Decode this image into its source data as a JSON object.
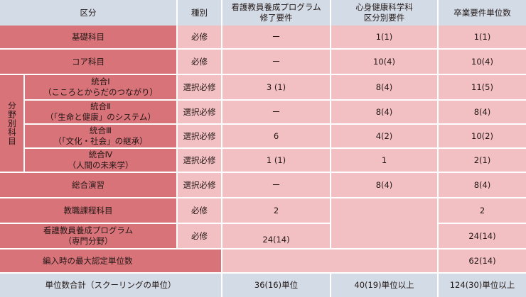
{
  "header": {
    "category": "区分",
    "type": "種別",
    "program_req": "看護教員養成プログラム\n修了要件",
    "dept_req": "心身健康科学科\n区分別要件",
    "grad_req": "卒業要件単位数"
  },
  "side_label": "分野別科目",
  "rows": [
    {
      "name": "基礎科目",
      "type": "必修",
      "program": "ー",
      "dept": "1(1)",
      "grad": "1(1)"
    },
    {
      "name": "コア科目",
      "type": "必修",
      "program": "ー",
      "dept": "10(4)",
      "grad": "10(4)"
    },
    {
      "name": "統合Ⅰ\n（こころとからだのつながり）",
      "type": "選択必修",
      "program": "3 (1)",
      "dept": "8(4)",
      "grad": "11(5)"
    },
    {
      "name": "統合Ⅱ\n（「生命と健康」のシステム）",
      "type": "選択必修",
      "program": "ー",
      "dept": "8(4)",
      "grad": "8(4)"
    },
    {
      "name": "統合Ⅲ\n（「文化・社会」の継承）",
      "type": "選択必修",
      "program": "6",
      "dept": "4(2)",
      "grad": "10(2)"
    },
    {
      "name": "統合Ⅳ\n（人間の未来学）",
      "type": "選択必修",
      "program": "1 (1)",
      "dept": "1",
      "grad": "2(1)"
    },
    {
      "name": "総合演習",
      "type": "選択必修",
      "program": "ー",
      "dept": "8(4)",
      "grad": "8(4)"
    },
    {
      "name": "教職課程科目",
      "type": "必修",
      "program": "2",
      "dept": "",
      "grad": "2"
    },
    {
      "name": "看護教員養成プログラム\n（専門分野）",
      "type": "必修",
      "program": "24(14)",
      "dept": "",
      "grad": "24(14)"
    }
  ],
  "transfer": {
    "label": "編入時の最大認定単位数",
    "grad": "62(14)"
  },
  "total": {
    "label": "単位数合計（スクーリングの単位）",
    "program": "36(16)単位",
    "dept": "40(19)単位以上",
    "grad": "124(30)単位以上"
  }
}
